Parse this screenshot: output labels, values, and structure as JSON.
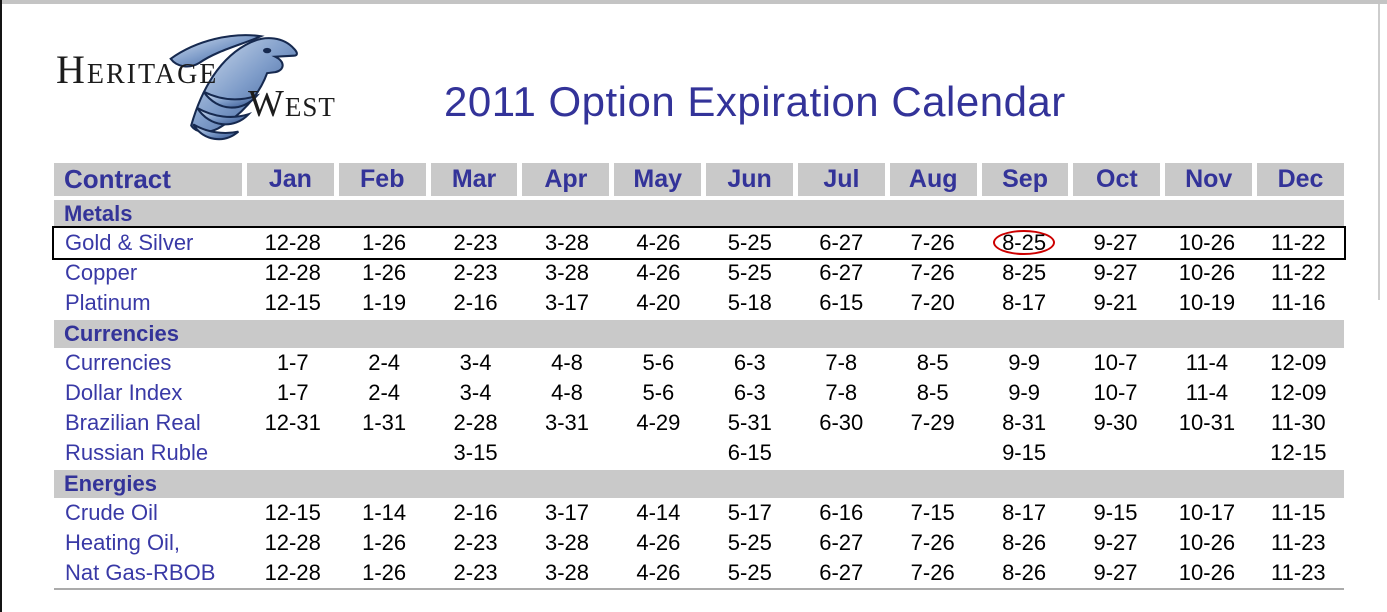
{
  "title": "2011 Option Expiration Calendar",
  "logo": {
    "line1": "Heritage",
    "line2": "West",
    "icon": "eagle-icon"
  },
  "colors": {
    "accent_blue": "#333399",
    "label_blue": "#3939A6",
    "section_bg": "#C9C9C9",
    "circle_red": "#CC0000",
    "line_gray": "#ABABAB"
  },
  "table": {
    "contract_header": "Contract",
    "months": [
      "Jan",
      "Feb",
      "Mar",
      "Apr",
      "May",
      "Jun",
      "Jul",
      "Aug",
      "Sep",
      "Oct",
      "Nov",
      "Dec"
    ],
    "sections": [
      {
        "name": "Metals",
        "rows": [
          {
            "label": "Gold & Silver",
            "highlighted": true,
            "circled_index": 8,
            "values": [
              "12-28",
              "1-26",
              "2-23",
              "3-28",
              "4-26",
              "5-25",
              "6-27",
              "7-26",
              "8-25",
              "9-27",
              "10-26",
              "11-22"
            ]
          },
          {
            "label": "Copper",
            "values": [
              "12-28",
              "1-26",
              "2-23",
              "3-28",
              "4-26",
              "5-25",
              "6-27",
              "7-26",
              "8-25",
              "9-27",
              "10-26",
              "11-22"
            ]
          },
          {
            "label": "Platinum",
            "values": [
              "12-15",
              "1-19",
              "2-16",
              "3-17",
              "4-20",
              "5-18",
              "6-15",
              "7-20",
              "8-17",
              "9-21",
              "10-19",
              "11-16"
            ]
          }
        ]
      },
      {
        "name": "Currencies",
        "rows": [
          {
            "label": "Currencies",
            "values": [
              "1-7",
              "2-4",
              "3-4",
              "4-8",
              "5-6",
              "6-3",
              "7-8",
              "8-5",
              "9-9",
              "10-7",
              "11-4",
              "12-09"
            ]
          },
          {
            "label": "Dollar Index",
            "values": [
              "1-7",
              "2-4",
              "3-4",
              "4-8",
              "5-6",
              "6-3",
              "7-8",
              "8-5",
              "9-9",
              "10-7",
              "11-4",
              "12-09"
            ]
          },
          {
            "label": "Brazilian Real",
            "values": [
              "12-31",
              "1-31",
              "2-28",
              "3-31",
              "4-29",
              "5-31",
              "6-30",
              "7-29",
              "8-31",
              "9-30",
              "10-31",
              "11-30"
            ]
          },
          {
            "label": "Russian Ruble",
            "values": [
              "",
              "",
              "3-15",
              "",
              "",
              "6-15",
              "",
              "",
              "9-15",
              "",
              "",
              "12-15"
            ]
          }
        ]
      },
      {
        "name": "Energies",
        "rows": [
          {
            "label": "Crude Oil",
            "values": [
              "12-15",
              "1-14",
              "2-16",
              "3-17",
              "4-14",
              "5-17",
              "6-16",
              "7-15",
              "8-17",
              "9-15",
              "10-17",
              "11-15"
            ]
          },
          {
            "label": "Heating Oil,",
            "values": [
              "12-28",
              "1-26",
              "2-23",
              "3-28",
              "4-26",
              "5-25",
              "6-27",
              "7-26",
              "8-26",
              "9-27",
              "10-26",
              "11-23"
            ]
          },
          {
            "label": "Nat Gas-RBOB",
            "values": [
              "12-28",
              "1-26",
              "2-23",
              "3-28",
              "4-26",
              "5-25",
              "6-27",
              "7-26",
              "8-26",
              "9-27",
              "10-26",
              "11-23"
            ]
          }
        ]
      }
    ]
  }
}
